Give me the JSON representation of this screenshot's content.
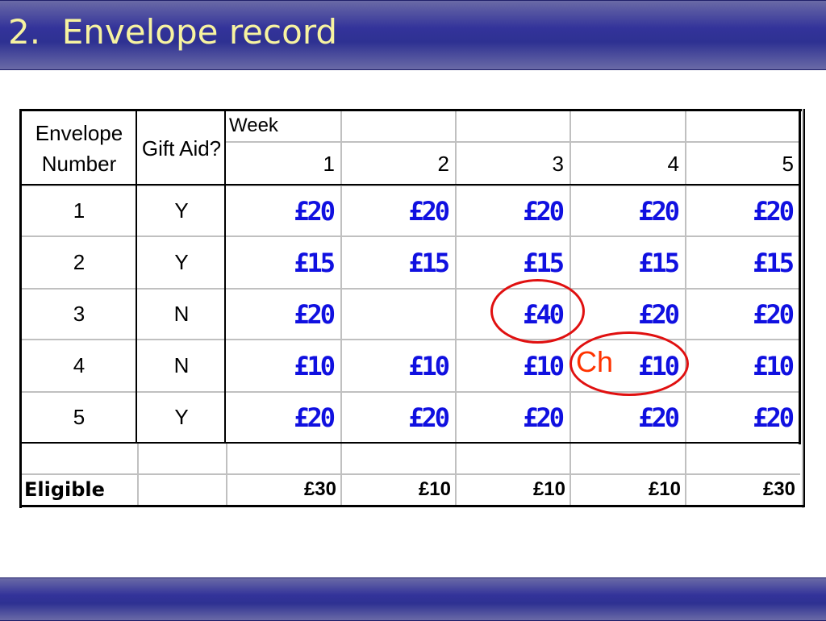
{
  "slide": {
    "title": "2.  Envelope record"
  },
  "table": {
    "headers": {
      "envelope_number": "Envelope Number",
      "gift_aid": "Gift Aid?",
      "week": "Week",
      "weeks": [
        "1",
        "2",
        "3",
        "4",
        "5"
      ]
    },
    "rows": [
      {
        "envelope": "1",
        "gift_aid": "Y",
        "amounts": [
          "£20",
          "£20",
          "£20",
          "£20",
          "£20"
        ]
      },
      {
        "envelope": "2",
        "gift_aid": "Y",
        "amounts": [
          "£15",
          "£15",
          "£15",
          "£15",
          "£15"
        ]
      },
      {
        "envelope": "3",
        "gift_aid": "N",
        "amounts": [
          "£20",
          "",
          "£40",
          "£20",
          "£20"
        ]
      },
      {
        "envelope": "4",
        "gift_aid": "N",
        "amounts": [
          "£10",
          "£10",
          "£10",
          "£10",
          "£10"
        ]
      },
      {
        "envelope": "5",
        "gift_aid": "Y",
        "amounts": [
          "£20",
          "£20",
          "£20",
          "£20",
          "£20"
        ]
      }
    ],
    "eligible": {
      "label": "Eligible",
      "values": [
        "£30",
        "£10",
        "£10",
        "£10",
        "£30"
      ]
    }
  },
  "annotations": {
    "change_mark": "Ch",
    "ring_color": "#e01010",
    "change_color": "#ff3300"
  },
  "colors": {
    "amount": "#1010e0",
    "title": "#f7f3a0",
    "bar": "#2e3192"
  }
}
